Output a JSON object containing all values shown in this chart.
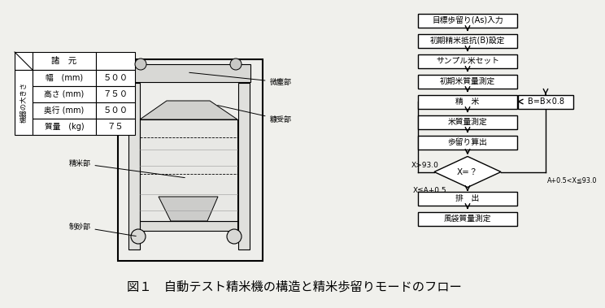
{
  "title": "図１　自動テスト精米機の構造と精米歩留りモードのフロー",
  "bg_color": "#f0f0ec",
  "table_rows": [
    [
      "幅　(mm)",
      "５００"
    ],
    [
      "高さ (mm)",
      "７５０"
    ],
    [
      "奥行 (mm)",
      "５００"
    ],
    [
      "質量　(kg)",
      "７５"
    ]
  ],
  "table_header_row": "諸　元",
  "table_side_label": "機器の大きさ",
  "flow_boxes": [
    "目標歩留り(As)入力",
    "初期精米抵抗(B)設定",
    "サンプル米セット",
    "初期米質量測定",
    "精　米",
    "米質量測定",
    "歩留り算出"
  ],
  "flow_diamond": "X=？",
  "flow_boxes2": [
    "排　出",
    "風袋質量測定"
  ],
  "flow_side_box": "B=B×0.8",
  "label_x_gt": "X>93.0",
  "label_x_le": "X≦A+0.5",
  "label_x_mid": "A+0.5<X≦93.0",
  "machine_labels": [
    "制砂部",
    "精米部",
    "糠受部",
    "微塵部"
  ]
}
